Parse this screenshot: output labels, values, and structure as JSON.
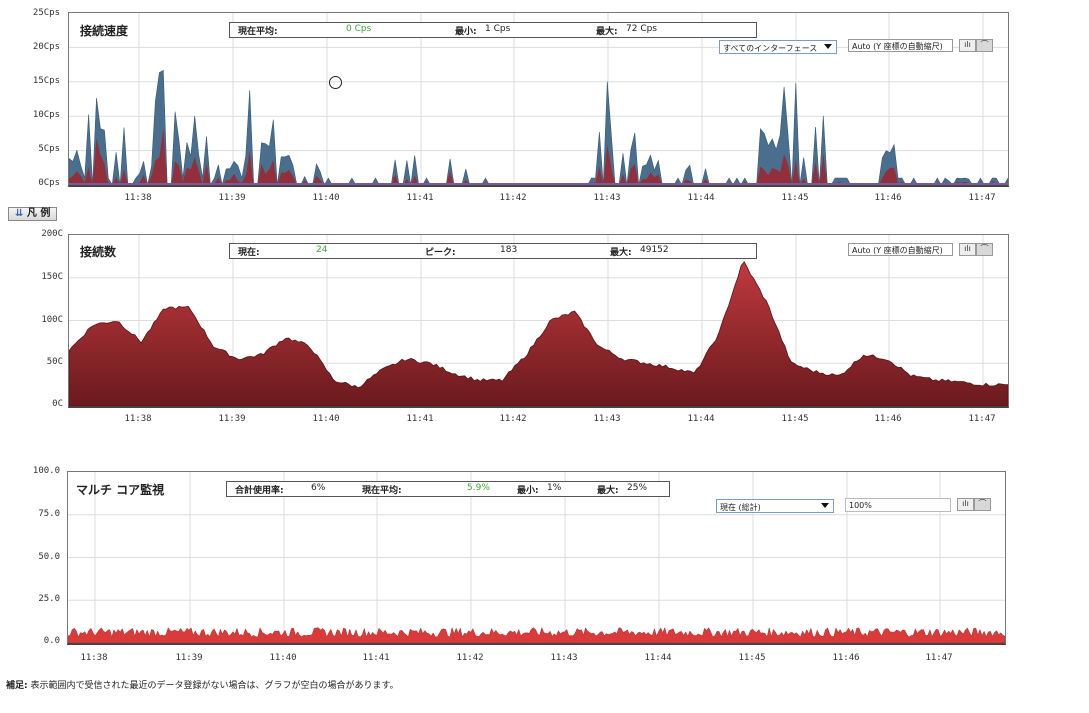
{
  "charts": {
    "speed": {
      "title": "接続速度",
      "stats": {
        "avg_label": "現在平均:",
        "avg_value": "0 Cps",
        "min_label": "最小:",
        "min_value": "1 Cps",
        "max_label": "最大:",
        "max_value": "72 Cps"
      },
      "interface_select": "すべてのインターフェース",
      "auto_label": "Auto (Y 座標の自動縮尺)",
      "yticks": [
        "25Cps",
        "20Cps",
        "15Cps",
        "10Cps",
        "5Cps",
        "0Cps"
      ],
      "xticks": [
        "11:38",
        "11:39",
        "11:40",
        "11:41",
        "11:42",
        "11:43",
        "11:44",
        "11:45",
        "11:46",
        "11:47"
      ]
    },
    "connections": {
      "title": "接続数",
      "stats": {
        "cur_label": "現在:",
        "cur_value": "24",
        "peak_label": "ピーク:",
        "peak_value": "183",
        "max_label": "最大:",
        "max_value": "49152"
      },
      "auto_label": "Auto (Y 座標の自動縮尺)",
      "yticks": [
        "200C",
        "150C",
        "100C",
        "50C",
        "0C"
      ],
      "xticks": [
        "11:38",
        "11:39",
        "11:40",
        "11:41",
        "11:42",
        "11:43",
        "11:44",
        "11:45",
        "11:46",
        "11:47"
      ]
    },
    "cpu": {
      "title": "マルチ コア監視",
      "stats": {
        "total_label": "合計使用率:",
        "total_value": "6%",
        "avg_label": "現在平均:",
        "avg_value": "5.9%",
        "min_label": "最小:",
        "min_value": "1%",
        "max_label": "最大:",
        "max_value": "25%"
      },
      "mode_select": "現在 (総計)",
      "scale_input": "100%",
      "yticks": [
        "100.0",
        "75.0",
        "50.0",
        "25.0",
        "0.0"
      ],
      "xticks": [
        "11:38",
        "11:39",
        "11:40",
        "11:41",
        "11:42",
        "11:43",
        "11:44",
        "11:45",
        "11:46",
        "11:47"
      ]
    }
  },
  "legend_button": "凡 例",
  "legend_icon": "double-chevron-down-icon",
  "toggle_bar_icon": "bar-chart-icon",
  "toggle_line_icon": "line-chart-icon",
  "footnote": {
    "label": "補足:",
    "text": "表示範囲内で受信された最近のデータ登録がない場合は、グラフが空白の場合があります。"
  },
  "colors": {
    "speed_fill": "#4a6f8e",
    "speed_fill_red": "#a0252b",
    "conn_fill": "#a42a2f",
    "cpu_fill": "#d93a3a",
    "grid": "#dddddd",
    "green_value": "#3aa832"
  },
  "chart_data": [
    {
      "type": "area",
      "title": "接続速度",
      "x": [
        "11:37:30",
        "11:37:45",
        "11:38:00",
        "11:38:15",
        "11:38:30",
        "11:38:45",
        "11:39:00",
        "11:39:15",
        "11:39:30",
        "11:39:45",
        "11:40:00",
        "11:40:15",
        "11:40:30",
        "11:40:45",
        "11:41:00",
        "11:41:15",
        "11:41:30",
        "11:41:45",
        "11:42:00",
        "11:42:15",
        "11:42:30",
        "11:42:45",
        "11:43:00",
        "11:43:15",
        "11:43:30",
        "11:43:45",
        "11:44:00",
        "11:44:15",
        "11:44:30",
        "11:44:45",
        "11:45:00",
        "11:45:15",
        "11:45:30",
        "11:45:45",
        "11:46:00",
        "11:46:15",
        "11:46:30",
        "11:46:45",
        "11:47:00",
        "11:47:15"
      ],
      "series": [
        {
          "name": "",
          "values": [
            5,
            12,
            8,
            4,
            18,
            10,
            8,
            6,
            15,
            4,
            3,
            0,
            0,
            0,
            7,
            0,
            6,
            0,
            0,
            0,
            0,
            0,
            22,
            8,
            4,
            0,
            4,
            0,
            0,
            12,
            18,
            10,
            0,
            0,
            9,
            0,
            0,
            1,
            0,
            0
          ]
        }
      ],
      "ylim": [
        0,
        25
      ],
      "ylabel_unit": "Cps"
    },
    {
      "type": "area",
      "title": "接続数",
      "x": [
        "11:37:30",
        "11:37:45",
        "11:38:00",
        "11:38:15",
        "11:38:30",
        "11:38:45",
        "11:39:00",
        "11:39:15",
        "11:39:30",
        "11:39:45",
        "11:40:00",
        "11:40:15",
        "11:40:30",
        "11:40:45",
        "11:41:00",
        "11:41:15",
        "11:41:30",
        "11:41:45",
        "11:42:00",
        "11:42:15",
        "11:42:30",
        "11:42:45",
        "11:43:00",
        "11:43:15",
        "11:43:30",
        "11:43:45",
        "11:44:00",
        "11:44:15",
        "11:44:30",
        "11:44:45",
        "11:45:00",
        "11:45:15",
        "11:45:30",
        "11:45:45",
        "11:46:00",
        "11:46:15",
        "11:46:30",
        "11:46:45",
        "11:47:00",
        "11:47:15"
      ],
      "series": [
        {
          "name": "",
          "values": [
            65,
            95,
            100,
            75,
            115,
            115,
            70,
            55,
            60,
            80,
            70,
            30,
            22,
            42,
            55,
            50,
            38,
            30,
            30,
            60,
            100,
            110,
            70,
            55,
            50,
            45,
            38,
            85,
            170,
            120,
            50,
            40,
            35,
            60,
            55,
            35,
            30,
            28,
            25,
            25
          ]
        }
      ],
      "ylim": [
        0,
        200
      ],
      "ylabel_unit": "C"
    },
    {
      "type": "area",
      "title": "マルチ コア監視",
      "x": [
        "11:38",
        "11:39",
        "11:40",
        "11:41",
        "11:42",
        "11:43",
        "11:44",
        "11:45",
        "11:46",
        "11:47"
      ],
      "series": [
        {
          "name": "",
          "values": [
            6,
            6,
            6,
            6,
            6,
            6,
            6,
            6,
            6,
            6
          ]
        }
      ],
      "ylim": [
        0,
        100
      ]
    }
  ]
}
